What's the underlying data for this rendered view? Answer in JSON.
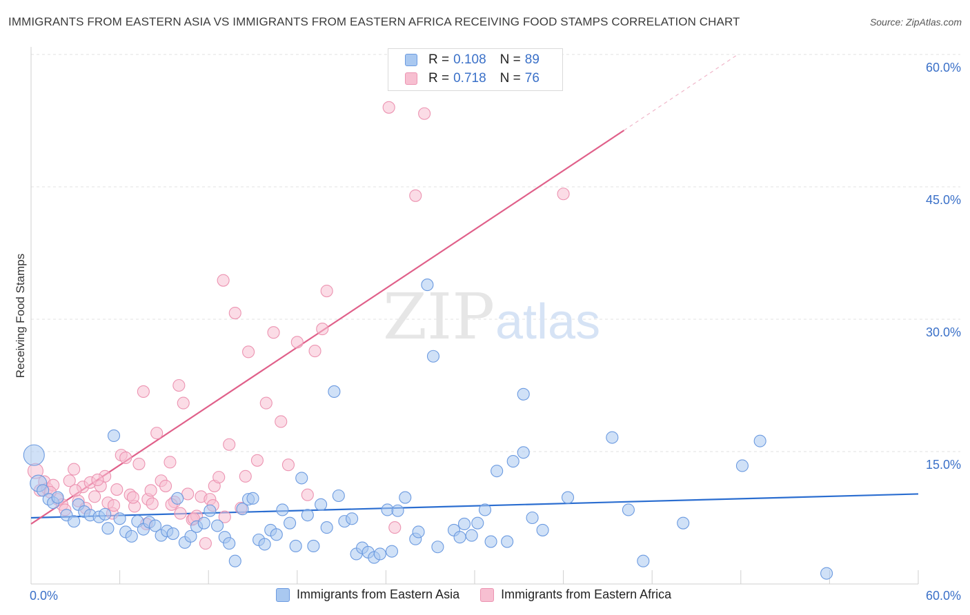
{
  "title": "IMMIGRANTS FROM EASTERN ASIA VS IMMIGRANTS FROM EASTERN AFRICA RECEIVING FOOD STAMPS CORRELATION CHART",
  "source": "Source: ZipAtlas.com",
  "watermark": {
    "zip": "ZIP",
    "atlas": "atlas"
  },
  "colors": {
    "blue_fill": "#a9c8f0",
    "blue_stroke": "#6b9ae0",
    "blue_line": "#2a6dd0",
    "pink_fill": "#f7bfd1",
    "pink_stroke": "#ec93b1",
    "pink_line": "#e0608a",
    "tick_text": "#3a70c8",
    "grid": "#e2e2e2"
  },
  "legend": {
    "rows": [
      {
        "r_label": "R =",
        "r_value": "0.108",
        "n_label": "N =",
        "n_value": "89"
      },
      {
        "r_label": "R =",
        "r_value": "0.718",
        "n_label": "N =",
        "n_value": "76"
      }
    ]
  },
  "bottom_legend": [
    "Immigrants from Eastern Asia",
    "Immigrants from Eastern Africa"
  ],
  "chart_data": {
    "type": "scatter",
    "xlabel": "",
    "ylabel": "Receiving Food Stamps",
    "xlim": [
      0,
      60
    ],
    "ylim": [
      0,
      60
    ],
    "x_tick_labels": [
      "0.0%",
      "60.0%"
    ],
    "y_ticks": [
      15,
      30,
      45,
      60
    ],
    "y_tick_labels": [
      "15.0%",
      "30.0%",
      "45.0%",
      "60.0%"
    ],
    "grid": true,
    "legend_position": "top-center",
    "series": [
      {
        "name": "Immigrants from Eastern Asia",
        "color": "#a9c8f0",
        "trend": {
          "x": [
            0,
            60
          ],
          "y": [
            7.5,
            10.2
          ]
        },
        "points": [
          [
            0.2,
            14.6
          ],
          [
            0.5,
            11.4
          ],
          [
            0.8,
            10.6
          ],
          [
            1.2,
            9.6
          ],
          [
            1.5,
            9.2
          ],
          [
            1.8,
            9.8
          ],
          [
            2.4,
            7.8
          ],
          [
            2.9,
            7.1
          ],
          [
            3.2,
            9.0
          ],
          [
            3.6,
            8.2
          ],
          [
            4.0,
            7.8
          ],
          [
            4.6,
            7.6
          ],
          [
            5.0,
            7.9
          ],
          [
            5.2,
            6.3
          ],
          [
            5.6,
            16.8
          ],
          [
            6.0,
            7.4
          ],
          [
            6.4,
            5.9
          ],
          [
            6.8,
            5.4
          ],
          [
            7.2,
            7.1
          ],
          [
            7.6,
            6.2
          ],
          [
            8.0,
            7.0
          ],
          [
            8.4,
            6.6
          ],
          [
            8.8,
            5.5
          ],
          [
            9.2,
            6.0
          ],
          [
            9.6,
            5.7
          ],
          [
            9.9,
            9.7
          ],
          [
            10.4,
            4.7
          ],
          [
            10.8,
            5.4
          ],
          [
            11.2,
            6.5
          ],
          [
            11.7,
            6.9
          ],
          [
            12.1,
            8.3
          ],
          [
            12.6,
            6.6
          ],
          [
            13.1,
            5.3
          ],
          [
            13.4,
            4.6
          ],
          [
            13.8,
            2.6
          ],
          [
            14.3,
            8.5
          ],
          [
            14.7,
            9.6
          ],
          [
            15.0,
            9.7
          ],
          [
            15.4,
            5.0
          ],
          [
            15.8,
            4.5
          ],
          [
            16.2,
            6.1
          ],
          [
            16.6,
            5.6
          ],
          [
            17.0,
            8.4
          ],
          [
            17.5,
            6.9
          ],
          [
            17.9,
            4.3
          ],
          [
            18.3,
            12.0
          ],
          [
            18.7,
            7.8
          ],
          [
            19.1,
            4.3
          ],
          [
            19.6,
            9.0
          ],
          [
            20.0,
            6.4
          ],
          [
            20.5,
            21.8
          ],
          [
            20.8,
            10.0
          ],
          [
            21.2,
            7.1
          ],
          [
            21.7,
            7.4
          ],
          [
            22.0,
            3.4
          ],
          [
            22.4,
            4.1
          ],
          [
            22.8,
            3.6
          ],
          [
            23.2,
            3.0
          ],
          [
            23.6,
            3.4
          ],
          [
            24.1,
            8.4
          ],
          [
            24.4,
            3.7
          ],
          [
            24.8,
            8.3
          ],
          [
            25.3,
            9.8
          ],
          [
            26.0,
            5.1
          ],
          [
            26.2,
            5.9
          ],
          [
            26.8,
            33.9
          ],
          [
            27.2,
            25.8
          ],
          [
            27.5,
            4.2
          ],
          [
            28.6,
            6.1
          ],
          [
            29.0,
            5.3
          ],
          [
            29.3,
            6.8
          ],
          [
            29.8,
            5.5
          ],
          [
            30.2,
            6.9
          ],
          [
            30.7,
            8.4
          ],
          [
            31.1,
            4.8
          ],
          [
            31.5,
            12.8
          ],
          [
            32.2,
            4.8
          ],
          [
            32.6,
            13.9
          ],
          [
            33.3,
            14.9
          ],
          [
            33.9,
            7.5
          ],
          [
            33.3,
            21.5
          ],
          [
            34.6,
            6.1
          ],
          [
            36.3,
            9.8
          ],
          [
            39.3,
            16.6
          ],
          [
            40.4,
            8.4
          ],
          [
            41.4,
            2.6
          ],
          [
            44.1,
            6.9
          ],
          [
            48.1,
            13.4
          ],
          [
            49.3,
            16.2
          ],
          [
            53.8,
            1.2
          ]
        ]
      },
      {
        "name": "Immigrants from Eastern Africa",
        "color": "#f7bfd1",
        "trend": {
          "x": [
            0,
            40.1
          ],
          "y": [
            6.8,
            51.4
          ]
        },
        "trend_dashed": {
          "x": [
            40.1,
            47.8
          ],
          "y": [
            51.4,
            60.0
          ]
        },
        "points": [
          [
            0.3,
            12.8
          ],
          [
            0.6,
            10.6
          ],
          [
            0.9,
            11.6
          ],
          [
            1.1,
            10.8
          ],
          [
            1.5,
            11.2
          ],
          [
            1.8,
            9.6
          ],
          [
            2.1,
            9.0
          ],
          [
            2.6,
            11.7
          ],
          [
            2.9,
            13.0
          ],
          [
            3.2,
            9.4
          ],
          [
            3.5,
            11.0
          ],
          [
            3.7,
            8.6
          ],
          [
            4.0,
            11.5
          ],
          [
            4.3,
            9.9
          ],
          [
            4.7,
            11.1
          ],
          [
            5.0,
            12.2
          ],
          [
            5.2,
            9.2
          ],
          [
            5.5,
            8.0
          ],
          [
            5.8,
            10.7
          ],
          [
            6.1,
            14.6
          ],
          [
            6.4,
            14.3
          ],
          [
            6.7,
            10.1
          ],
          [
            7.0,
            8.8
          ],
          [
            7.3,
            13.6
          ],
          [
            7.6,
            21.8
          ],
          [
            7.9,
            9.6
          ],
          [
            8.2,
            9.1
          ],
          [
            8.5,
            17.1
          ],
          [
            8.8,
            11.7
          ],
          [
            9.1,
            11.1
          ],
          [
            9.4,
            13.8
          ],
          [
            9.7,
            9.3
          ],
          [
            10.0,
            22.5
          ],
          [
            10.3,
            20.5
          ],
          [
            10.6,
            10.2
          ],
          [
            10.9,
            7.3
          ],
          [
            11.2,
            7.7
          ],
          [
            11.5,
            9.9
          ],
          [
            11.8,
            4.6
          ],
          [
            12.1,
            9.6
          ],
          [
            12.4,
            11.1
          ],
          [
            12.7,
            12.1
          ],
          [
            13.0,
            34.4
          ],
          [
            13.4,
            15.8
          ],
          [
            13.8,
            30.7
          ],
          [
            14.2,
            8.6
          ],
          [
            14.7,
            26.3
          ],
          [
            15.3,
            14.0
          ],
          [
            15.9,
            20.5
          ],
          [
            16.4,
            28.5
          ],
          [
            16.9,
            18.4
          ],
          [
            17.4,
            13.5
          ],
          [
            18.0,
            27.4
          ],
          [
            18.7,
            10.1
          ],
          [
            19.2,
            26.4
          ],
          [
            19.7,
            28.9
          ],
          [
            20.0,
            33.2
          ],
          [
            24.2,
            54.0
          ],
          [
            24.6,
            6.4
          ],
          [
            26.0,
            44.0
          ],
          [
            26.6,
            53.3
          ],
          [
            36.0,
            44.2
          ],
          [
            1.3,
            10.4
          ],
          [
            2.3,
            8.4
          ],
          [
            3.0,
            10.6
          ],
          [
            4.5,
            11.8
          ],
          [
            5.6,
            8.9
          ],
          [
            6.9,
            9.8
          ],
          [
            7.8,
            6.8
          ],
          [
            8.1,
            10.6
          ],
          [
            9.5,
            9.0
          ],
          [
            10.1,
            8.0
          ],
          [
            11.0,
            7.4
          ],
          [
            12.3,
            8.9
          ],
          [
            13.1,
            7.6
          ],
          [
            14.5,
            12.2
          ]
        ]
      }
    ]
  }
}
